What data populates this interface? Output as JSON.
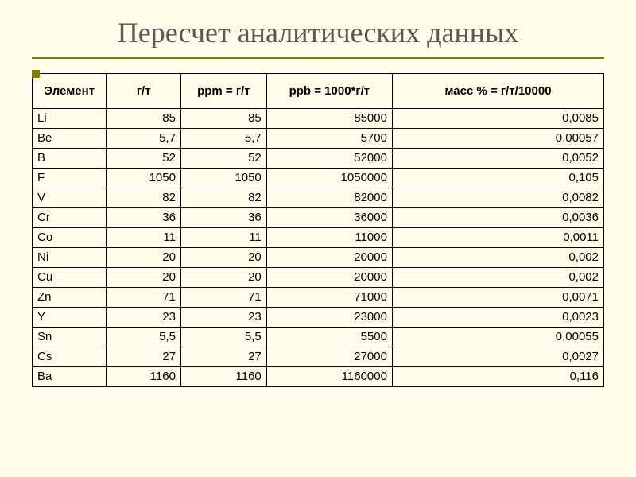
{
  "title": "Пересчет аналитических данных",
  "table": {
    "title_fontsize": 36,
    "title_color": "#595959",
    "underline_color": "#808000",
    "bullet_color": "#808000",
    "background_color": "#fffde9",
    "border_color": "#000000",
    "cell_fontsize": 15,
    "header_fontweight": "bold",
    "columns": [
      {
        "key": "element",
        "label": "Элемент",
        "align": "center",
        "width": "13%"
      },
      {
        "key": "gt",
        "label": "г/т",
        "align": "center",
        "width": "13%"
      },
      {
        "key": "ppm",
        "label": "ppm = г/т",
        "align": "center",
        "width": "15%"
      },
      {
        "key": "ppb",
        "label": "ppb = 1000*г/т",
        "align": "center",
        "width": "22%"
      },
      {
        "key": "mass",
        "label": "масс % = г/т/10000",
        "align": "center",
        "width": "37%"
      }
    ],
    "rows": [
      {
        "element": "Li",
        "gt": "85",
        "ppm": "85",
        "ppb": "85000",
        "mass": "0,0085"
      },
      {
        "element": "Be",
        "gt": "5,7",
        "ppm": "5,7",
        "ppb": "5700",
        "mass": "0,00057"
      },
      {
        "element": "B",
        "gt": "52",
        "ppm": "52",
        "ppb": "52000",
        "mass": "0,0052"
      },
      {
        "element": "F",
        "gt": "1050",
        "ppm": "1050",
        "ppb": "1050000",
        "mass": "0,105"
      },
      {
        "element": "V",
        "gt": "82",
        "ppm": "82",
        "ppb": "82000",
        "mass": "0,0082"
      },
      {
        "element": "Cr",
        "gt": "36",
        "ppm": "36",
        "ppb": "36000",
        "mass": "0,0036"
      },
      {
        "element": "Co",
        "gt": "11",
        "ppm": "11",
        "ppb": "11000",
        "mass": "0,0011"
      },
      {
        "element": "Ni",
        "gt": "20",
        "ppm": "20",
        "ppb": "20000",
        "mass": "0,002"
      },
      {
        "element": "Cu",
        "gt": "20",
        "ppm": "20",
        "ppb": "20000",
        "mass": "0,002"
      },
      {
        "element": "Zn",
        "gt": "71",
        "ppm": "71",
        "ppb": "71000",
        "mass": "0,0071"
      },
      {
        "element": "Y",
        "gt": "23",
        "ppm": "23",
        "ppb": "23000",
        "mass": "0,0023"
      },
      {
        "element": "Sn",
        "gt": "5,5",
        "ppm": "5,5",
        "ppb": "5500",
        "mass": "0,00055"
      },
      {
        "element": "Cs",
        "gt": "27",
        "ppm": "27",
        "ppb": "27000",
        "mass": "0,0027"
      },
      {
        "element": "Ba",
        "gt": "1160",
        "ppm": "1160",
        "ppb": "1160000",
        "mass": "0,116"
      }
    ]
  }
}
